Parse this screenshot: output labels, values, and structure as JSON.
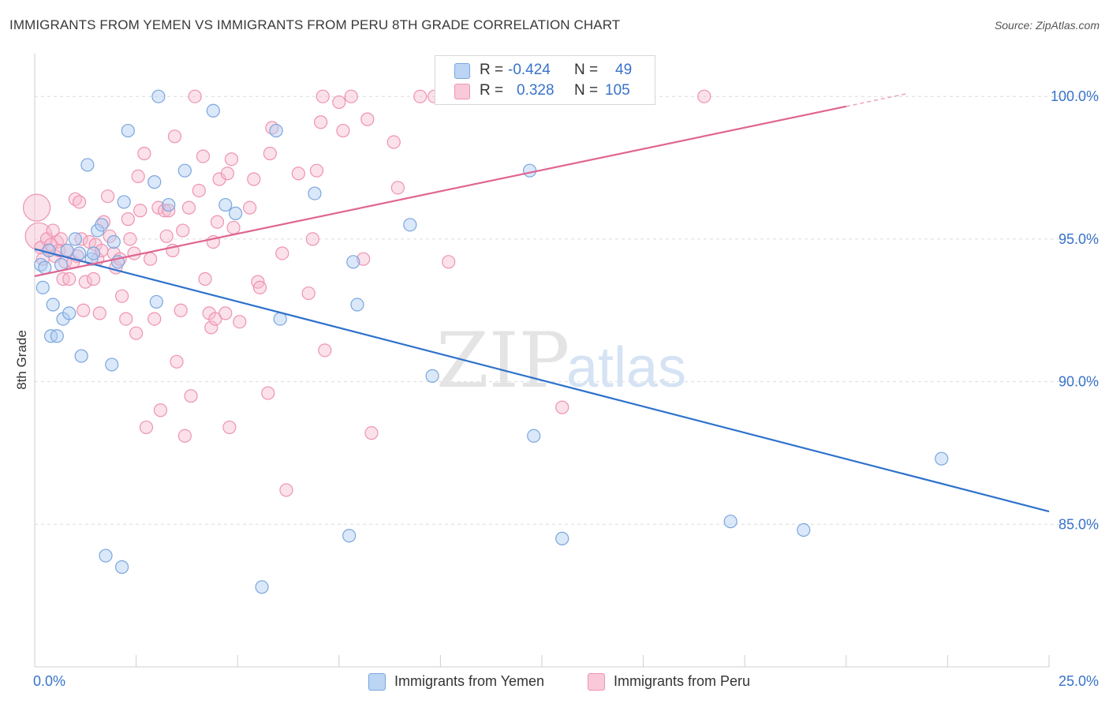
{
  "title": "IMMIGRANTS FROM YEMEN VS IMMIGRANTS FROM PERU 8TH GRADE CORRELATION CHART",
  "source": "Source: ZipAtlas.com",
  "watermark": {
    "zip": "ZIP",
    "atlas": "atlas"
  },
  "legend": {
    "rows": [
      {
        "r_label": "R =",
        "r_value": "-0.424",
        "n_label": "N =",
        "n_value": "49"
      },
      {
        "r_label": "R =",
        "r_value": "0.328",
        "n_label": "N =",
        "n_value": "105"
      }
    ]
  },
  "colors": {
    "yemen_fill": "#aecbf1",
    "yemen_stroke": "#7aa6de",
    "yemen_line": "#2f72cc",
    "peru_fill": "#f7bdd0",
    "peru_stroke": "#ee93b2",
    "peru_line": "#e06592",
    "grid": "#dcdcdc",
    "tick_label": "#3873c9",
    "axis": "#cfcfcf"
  },
  "chart_data": {
    "type": "scatter",
    "ylabel": "8th Grade",
    "xlabel": "",
    "xlim": [
      0,
      25
    ],
    "ylim": [
      80.0,
      101.5
    ],
    "x_tick_labels": [
      "0.0%",
      "25.0%"
    ],
    "y_ticks": [
      85,
      90,
      95,
      100
    ],
    "y_tick_labels": [
      "85.0%",
      "90.0%",
      "95.0%",
      "100.0%"
    ],
    "grid": true,
    "legend_position": "top-center",
    "series": [
      {
        "name": "Immigrants from Yemen",
        "color_key": "yemen",
        "r": -0.424,
        "n": 49,
        "trend": {
          "x": [
            0,
            25
          ],
          "y": [
            94.65,
            85.45
          ]
        },
        "points": [
          [
            0.15,
            94.1
          ],
          [
            0.2,
            93.3
          ],
          [
            0.35,
            94.6
          ],
          [
            0.45,
            92.7
          ],
          [
            0.4,
            91.6
          ],
          [
            0.55,
            91.6
          ],
          [
            0.65,
            94.1
          ],
          [
            0.7,
            92.2
          ],
          [
            0.85,
            92.4
          ],
          [
            1.0,
            95.0
          ],
          [
            1.1,
            94.5
          ],
          [
            1.15,
            90.9
          ],
          [
            1.3,
            97.6
          ],
          [
            1.4,
            94.3
          ],
          [
            1.45,
            94.5
          ],
          [
            1.55,
            95.3
          ],
          [
            1.65,
            95.5
          ],
          [
            1.75,
            83.9
          ],
          [
            1.9,
            90.6
          ],
          [
            1.95,
            94.9
          ],
          [
            2.05,
            94.2
          ],
          [
            2.15,
            83.5
          ],
          [
            2.2,
            96.3
          ],
          [
            2.3,
            98.8
          ],
          [
            2.95,
            97.0
          ],
          [
            3.0,
            92.8
          ],
          [
            3.05,
            100.0
          ],
          [
            3.3,
            96.2
          ],
          [
            3.7,
            97.4
          ],
          [
            4.4,
            99.5
          ],
          [
            4.7,
            96.2
          ],
          [
            4.95,
            95.9
          ],
          [
            5.6,
            82.8
          ],
          [
            5.95,
            98.8
          ],
          [
            6.05,
            92.2
          ],
          [
            6.9,
            96.6
          ],
          [
            7.75,
            84.6
          ],
          [
            7.85,
            94.2
          ],
          [
            7.95,
            92.7
          ],
          [
            9.25,
            95.5
          ],
          [
            9.8,
            90.2
          ],
          [
            12.2,
            97.4
          ],
          [
            12.3,
            88.1
          ],
          [
            13.0,
            84.5
          ],
          [
            17.15,
            85.1
          ],
          [
            18.95,
            84.8
          ],
          [
            22.35,
            87.3
          ],
          [
            0.25,
            94.0
          ],
          [
            0.8,
            94.6
          ]
        ]
      },
      {
        "name": "Immigrants from Peru",
        "color_key": "peru",
        "r": 0.328,
        "n": 105,
        "trend": {
          "x": [
            0,
            20.0
          ],
          "y": [
            93.7,
            99.65
          ]
        },
        "trend_dashed": {
          "x": [
            20.0,
            21.5
          ],
          "y": [
            99.65,
            100.1
          ]
        },
        "points": [
          [
            0.05,
            96.1
          ],
          [
            0.1,
            95.1
          ],
          [
            0.15,
            94.7
          ],
          [
            0.2,
            94.3
          ],
          [
            0.3,
            95.0
          ],
          [
            0.35,
            94.6
          ],
          [
            0.45,
            95.3
          ],
          [
            0.5,
            94.4
          ],
          [
            0.55,
            94.9
          ],
          [
            0.6,
            94.6
          ],
          [
            0.65,
            95.0
          ],
          [
            0.7,
            93.6
          ],
          [
            0.75,
            94.2
          ],
          [
            0.8,
            94.6
          ],
          [
            0.85,
            93.6
          ],
          [
            0.95,
            94.2
          ],
          [
            1.0,
            96.4
          ],
          [
            1.05,
            94.4
          ],
          [
            1.1,
            96.3
          ],
          [
            1.15,
            95.0
          ],
          [
            1.2,
            92.5
          ],
          [
            1.25,
            93.5
          ],
          [
            1.35,
            94.9
          ],
          [
            1.45,
            93.6
          ],
          [
            1.5,
            94.8
          ],
          [
            1.55,
            94.3
          ],
          [
            1.6,
            92.4
          ],
          [
            1.7,
            95.6
          ],
          [
            1.8,
            96.5
          ],
          [
            1.85,
            95.1
          ],
          [
            1.95,
            94.5
          ],
          [
            2.0,
            94.0
          ],
          [
            2.1,
            94.3
          ],
          [
            2.15,
            93.0
          ],
          [
            2.25,
            92.2
          ],
          [
            2.3,
            95.7
          ],
          [
            2.35,
            95.0
          ],
          [
            2.45,
            94.5
          ],
          [
            2.5,
            91.7
          ],
          [
            2.55,
            97.2
          ],
          [
            2.6,
            96.0
          ],
          [
            2.7,
            98.0
          ],
          [
            2.75,
            88.4
          ],
          [
            2.85,
            94.3
          ],
          [
            2.95,
            92.2
          ],
          [
            3.05,
            96.1
          ],
          [
            3.1,
            89.0
          ],
          [
            3.2,
            96.0
          ],
          [
            3.25,
            95.1
          ],
          [
            3.3,
            96.0
          ],
          [
            3.4,
            94.6
          ],
          [
            3.45,
            98.6
          ],
          [
            3.5,
            90.7
          ],
          [
            3.6,
            92.5
          ],
          [
            3.65,
            95.3
          ],
          [
            3.7,
            88.1
          ],
          [
            3.8,
            96.1
          ],
          [
            3.85,
            89.5
          ],
          [
            3.95,
            100.0
          ],
          [
            4.05,
            96.7
          ],
          [
            4.15,
            97.9
          ],
          [
            4.2,
            93.6
          ],
          [
            4.3,
            92.4
          ],
          [
            4.35,
            91.9
          ],
          [
            4.4,
            94.9
          ],
          [
            4.45,
            92.2
          ],
          [
            4.5,
            95.6
          ],
          [
            4.55,
            97.1
          ],
          [
            4.7,
            92.4
          ],
          [
            4.75,
            97.3
          ],
          [
            4.8,
            88.4
          ],
          [
            4.85,
            97.8
          ],
          [
            4.9,
            95.4
          ],
          [
            5.05,
            92.1
          ],
          [
            5.3,
            96.1
          ],
          [
            5.4,
            97.1
          ],
          [
            5.5,
            93.5
          ],
          [
            5.55,
            93.3
          ],
          [
            5.75,
            89.6
          ],
          [
            5.8,
            98.0
          ],
          [
            5.85,
            98.9
          ],
          [
            6.1,
            94.5
          ],
          [
            6.2,
            86.2
          ],
          [
            6.5,
            97.3
          ],
          [
            6.75,
            93.1
          ],
          [
            6.85,
            95.0
          ],
          [
            6.95,
            97.4
          ],
          [
            7.05,
            99.1
          ],
          [
            7.1,
            100.0
          ],
          [
            7.15,
            91.1
          ],
          [
            7.5,
            99.8
          ],
          [
            7.6,
            98.8
          ],
          [
            7.8,
            100.0
          ],
          [
            8.1,
            94.3
          ],
          [
            8.2,
            99.2
          ],
          [
            8.3,
            88.2
          ],
          [
            8.85,
            98.4
          ],
          [
            8.95,
            96.8
          ],
          [
            9.5,
            100.0
          ],
          [
            10.2,
            94.2
          ],
          [
            13.0,
            89.1
          ],
          [
            16.5,
            100.0
          ],
          [
            9.85,
            100.0
          ],
          [
            0.4,
            94.8
          ],
          [
            1.65,
            94.6
          ]
        ]
      }
    ]
  }
}
